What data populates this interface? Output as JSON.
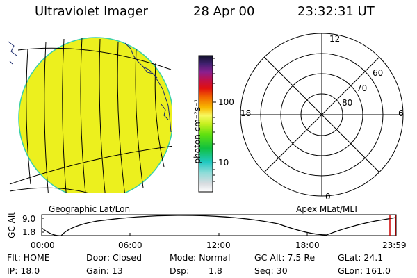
{
  "header": {
    "instrument": "Ultraviolet Imager",
    "date": "28 Apr 00",
    "time": "23:32:31 UT"
  },
  "colorbar": {
    "unit_label": "photon cm⁻²s⁻¹",
    "tick_100": "100",
    "tick_10": "10"
  },
  "left_panel": {
    "caption": "Geographic Lat/Lon"
  },
  "right_panel": {
    "caption": "Apex MLat/MLT",
    "mlt_top": "12",
    "mlt_left": "18",
    "mlt_right": "6",
    "mlt_bottom": "0",
    "lat_60": "60",
    "lat_70": "70",
    "lat_80": "80"
  },
  "altitude_plot": {
    "ylabel": "GC Alt",
    "y_high": "9.0",
    "y_low": "1.8",
    "x_ticks": [
      "00:00",
      "06:00",
      "12:00",
      "18:00",
      "23:59"
    ]
  },
  "status": {
    "flt": "Flt: HOME",
    "ip": "IP: 18.0",
    "door": "Door: Closed",
    "gain": "Gain: 13",
    "mode": "Mode: Normal",
    "dsp_label": "Dsp:",
    "dsp_value": "1.8",
    "gc_alt": "GC Alt: 7.5 Re",
    "seq": "Seq: 30",
    "glat": "GLat: 24.1",
    "glon": "GLon: 161.0"
  },
  "colors": {
    "earth_fill": "#ecf01e",
    "earth_edge": "#38d0a8",
    "marker": "#cc0000"
  }
}
